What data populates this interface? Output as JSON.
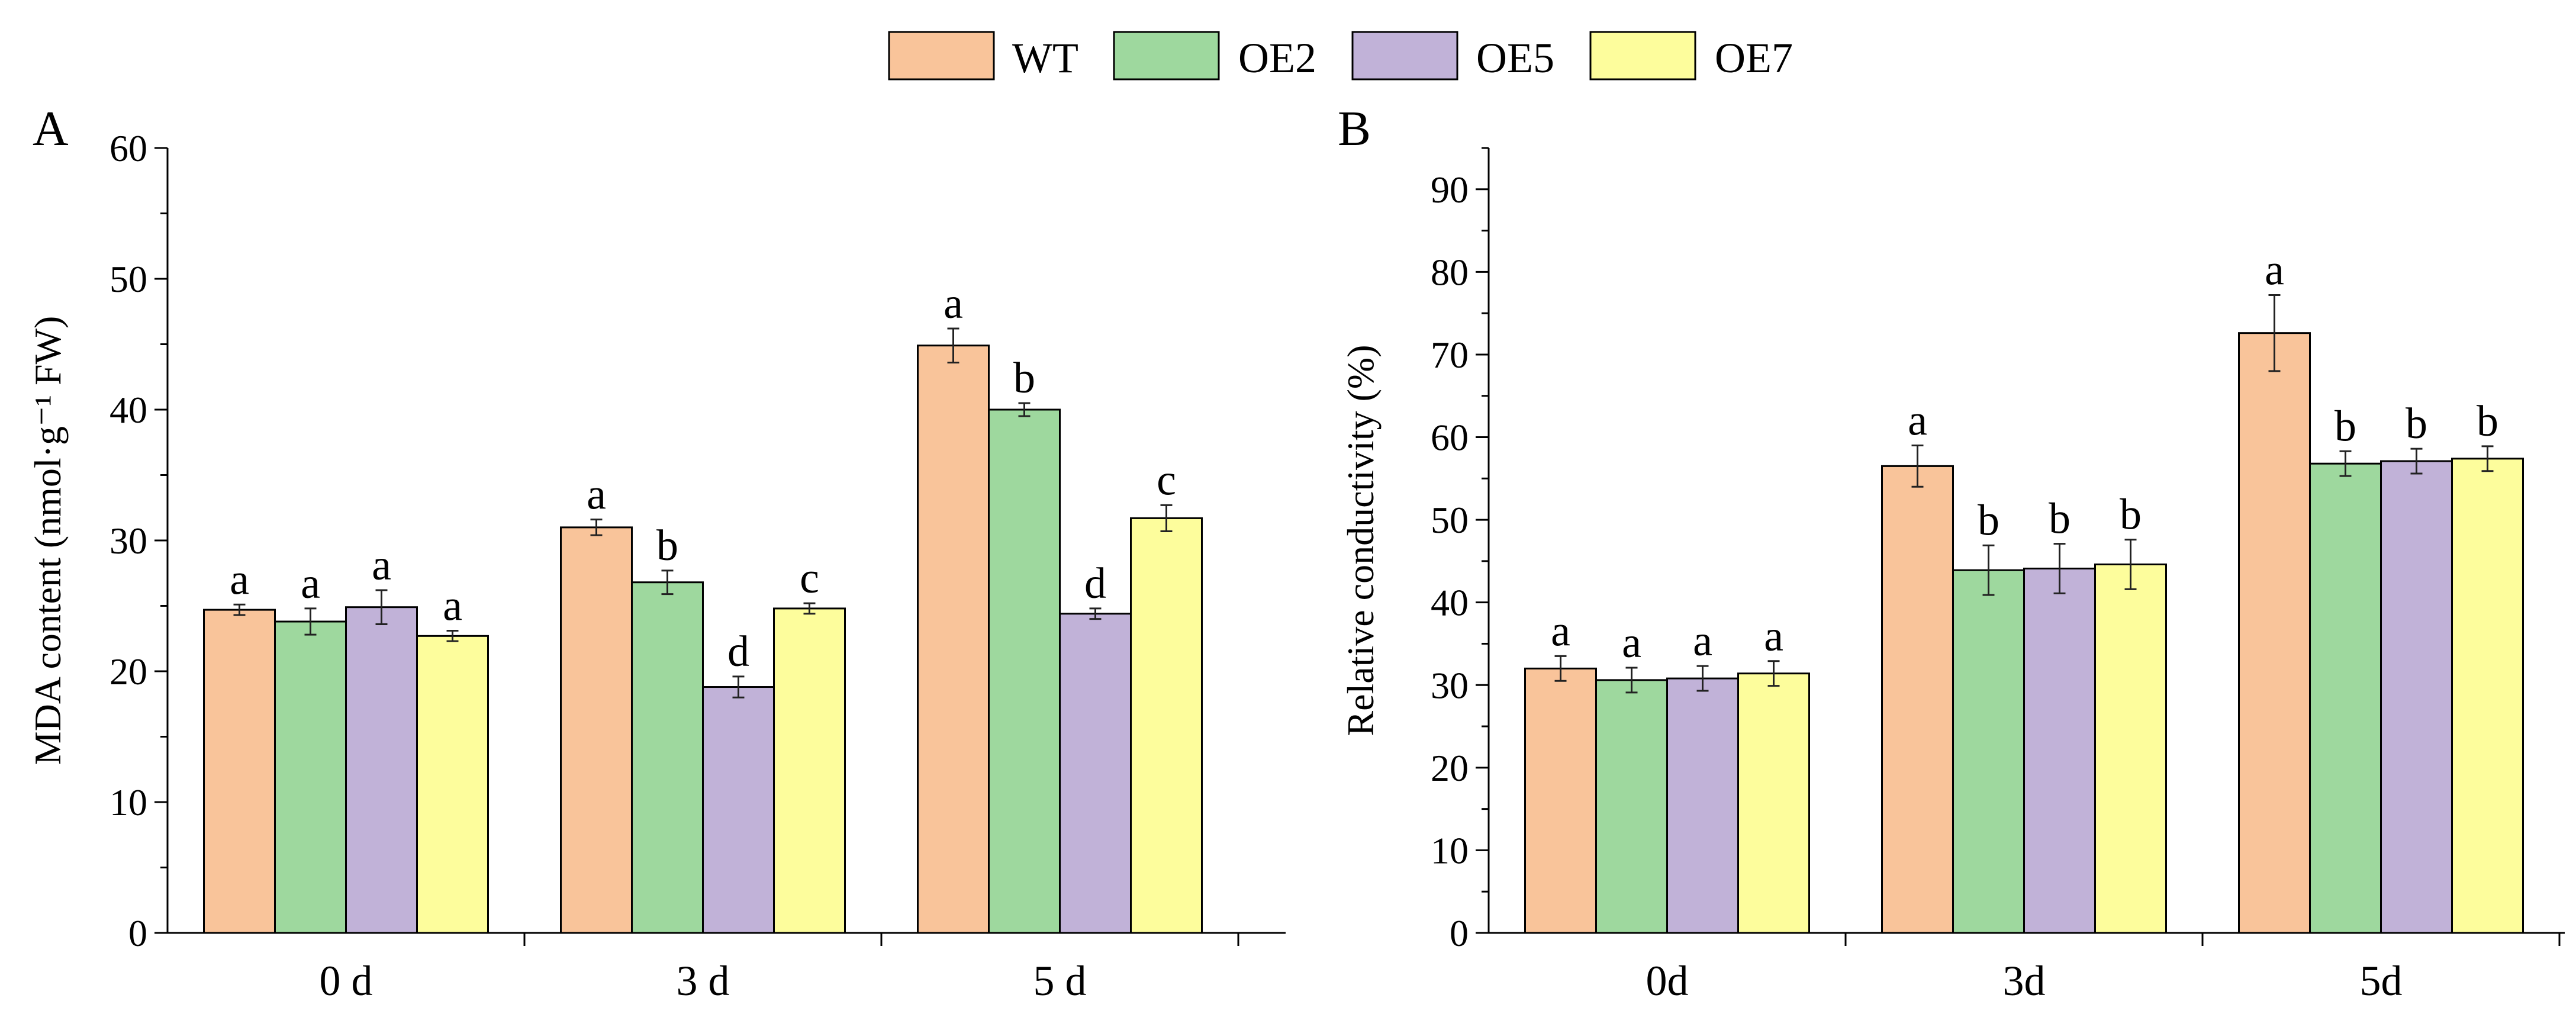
{
  "legend": {
    "items": [
      {
        "label": "WT",
        "color": "#F9C49A"
      },
      {
        "label": "OE2",
        "color": "#9ED89E"
      },
      {
        "label": "OE5",
        "color": "#C1B2D8"
      },
      {
        "label": "OE7",
        "color": "#FDFD9C"
      }
    ]
  },
  "chart_data": [
    {
      "type": "bar",
      "panel": "A",
      "title": "",
      "xlabel": "",
      "ylabel": "MDA content (nmol·g⁻¹ FW)",
      "ylim": [
        0,
        60
      ],
      "yticks": [
        0,
        10,
        20,
        30,
        40,
        50,
        60
      ],
      "grid": false,
      "legend_position": "top-center",
      "categories": [
        "0 d",
        "3 d",
        "5 d"
      ],
      "series": [
        {
          "name": "WT",
          "values": [
            24.7,
            31.0,
            44.9
          ],
          "errors": [
            0.4,
            0.6,
            1.3
          ],
          "letters": [
            "a",
            "a",
            "a"
          ]
        },
        {
          "name": "OE2",
          "values": [
            23.8,
            26.8,
            40.0
          ],
          "errors": [
            1.0,
            0.9,
            0.5
          ],
          "letters": [
            "a",
            "b",
            "b"
          ]
        },
        {
          "name": "OE5",
          "values": [
            24.9,
            18.8,
            24.4
          ],
          "errors": [
            1.3,
            0.8,
            0.4
          ],
          "letters": [
            "a",
            "d",
            "d"
          ]
        },
        {
          "name": "OE7",
          "values": [
            22.7,
            24.8,
            31.7
          ],
          "errors": [
            0.4,
            0.4,
            1.0
          ],
          "letters": [
            "a",
            "c",
            "c"
          ]
        }
      ]
    },
    {
      "type": "bar",
      "panel": "B",
      "title": "",
      "xlabel": "",
      "ylabel": "Relative conductivity (%)",
      "ylim": [
        0,
        95
      ],
      "yticks": [
        0,
        10,
        20,
        30,
        40,
        50,
        60,
        70,
        80,
        90
      ],
      "grid": false,
      "legend_position": "top-center",
      "categories": [
        "0d",
        "3d",
        "5d"
      ],
      "series": [
        {
          "name": "WT",
          "values": [
            32.0,
            56.5,
            72.6
          ],
          "errors": [
            1.5,
            2.5,
            4.6
          ],
          "letters": [
            "a",
            "a",
            "a"
          ]
        },
        {
          "name": "OE2",
          "values": [
            30.6,
            43.9,
            56.8
          ],
          "errors": [
            1.5,
            3.0,
            1.5
          ],
          "letters": [
            "a",
            "b",
            "b"
          ]
        },
        {
          "name": "OE5",
          "values": [
            30.8,
            44.1,
            57.1
          ],
          "errors": [
            1.5,
            3.0,
            1.5
          ],
          "letters": [
            "a",
            "b",
            "b"
          ]
        },
        {
          "name": "OE7",
          "values": [
            31.4,
            44.6,
            57.4
          ],
          "errors": [
            1.5,
            3.0,
            1.5
          ],
          "letters": [
            "a",
            "b",
            "b"
          ]
        }
      ]
    }
  ]
}
